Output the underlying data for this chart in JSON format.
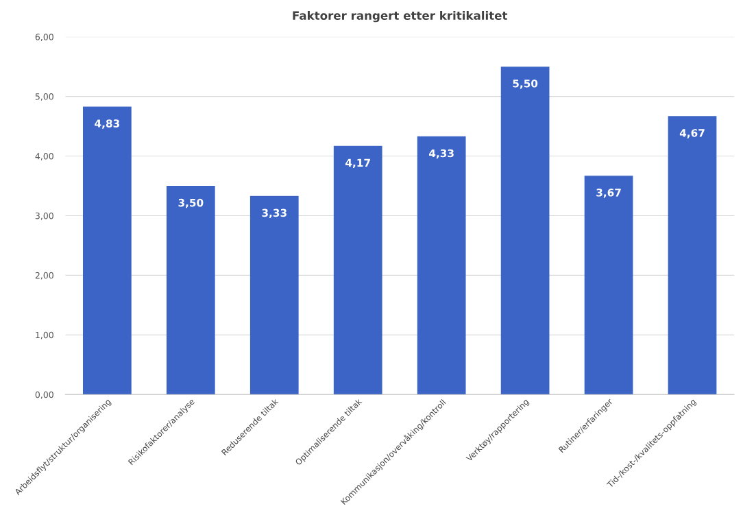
{
  "chart_data": {
    "type": "bar",
    "title": "Faktorer rangert etter kritikalitet",
    "categories": [
      "Arbeidsflyt/struktur/organisering",
      "Risikofaktorer/analyse",
      "Reduserende tiltak",
      "Optimaliserende tiltak",
      "Kommunikasjon/overvåking/kontroll",
      "Verktøy/rapportering",
      "Rutiner/erfaringer",
      "Tid-/kost-/kvalitets-oppfatning"
    ],
    "values": [
      4.83,
      3.5,
      3.33,
      4.17,
      4.33,
      5.5,
      3.67,
      4.67
    ],
    "value_labels": [
      "4,83",
      "3,50",
      "3,33",
      "4,17",
      "4,33",
      "5,50",
      "3,67",
      "4,67"
    ],
    "color": "#3c64c6",
    "ylim": [
      0,
      6
    ],
    "yticks": [
      {
        "value": 0,
        "label": "0,00"
      },
      {
        "value": 1,
        "label": "1,00"
      },
      {
        "value": 2,
        "label": "2,00"
      },
      {
        "value": 3,
        "label": "3,00"
      },
      {
        "value": 4,
        "label": "4,00"
      },
      {
        "value": 5,
        "label": "5,00"
      },
      {
        "value": 6,
        "label": "6,00"
      }
    ],
    "grid": "y",
    "legend": false
  }
}
